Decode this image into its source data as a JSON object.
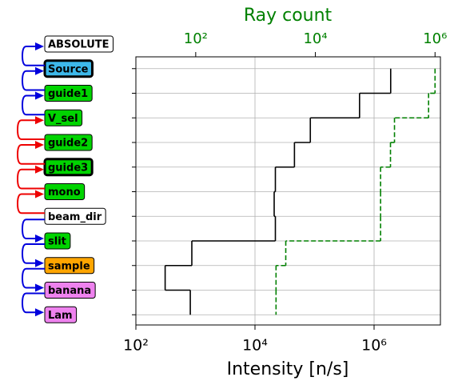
{
  "chart_data": {
    "type": "step",
    "categories": [
      "ABSOLUTE",
      "Source",
      "guide1",
      "V_sel",
      "guide2",
      "guide3",
      "mono",
      "beam_dir",
      "slit",
      "sample",
      "banana",
      "Lam"
    ],
    "box_colors": [
      "#ffffff",
      "#3db8ea",
      "#00d400",
      "#00d400",
      "#00d400",
      "#00d400",
      "#00d400",
      "#ffffff",
      "#00d400",
      "#ffa500",
      "#ee82ee",
      "#ee82ee"
    ],
    "box_linewidths": [
      1,
      3,
      1,
      1,
      1,
      3,
      1,
      1,
      1,
      1,
      1,
      1
    ],
    "xlabel": "Intensity [n/s]",
    "x2label": "Ray count",
    "xscale": "log",
    "x2scale": "log",
    "xlim": [
      100,
      13000000
    ],
    "xticks": [
      {
        "value": 100,
        "label": "10²"
      },
      {
        "value": 10000,
        "label": "10⁴"
      },
      {
        "value": 1000000,
        "label": "10⁶"
      }
    ],
    "x2lim": [
      10,
      1230000
    ],
    "x2ticks": [
      {
        "value": 100,
        "label": "10²"
      },
      {
        "value": 10000,
        "label": "10⁴"
      },
      {
        "value": 1000000,
        "label": "10⁶"
      }
    ],
    "grid": true,
    "series": [
      {
        "color": "#000000",
        "linestyle": "solid",
        "axis": "x",
        "values": [
          null,
          1900000,
          570000,
          85000,
          46000,
          22000,
          21000,
          22000,
          870,
          310,
          820,
          null
        ]
      },
      {
        "color": "#008000",
        "linestyle": "dashed",
        "axis": "x2",
        "values": [
          null,
          1000000,
          780000,
          210000,
          180000,
          123000,
          123000,
          123000,
          3200,
          2200,
          2200,
          null
        ]
      }
    ]
  }
}
